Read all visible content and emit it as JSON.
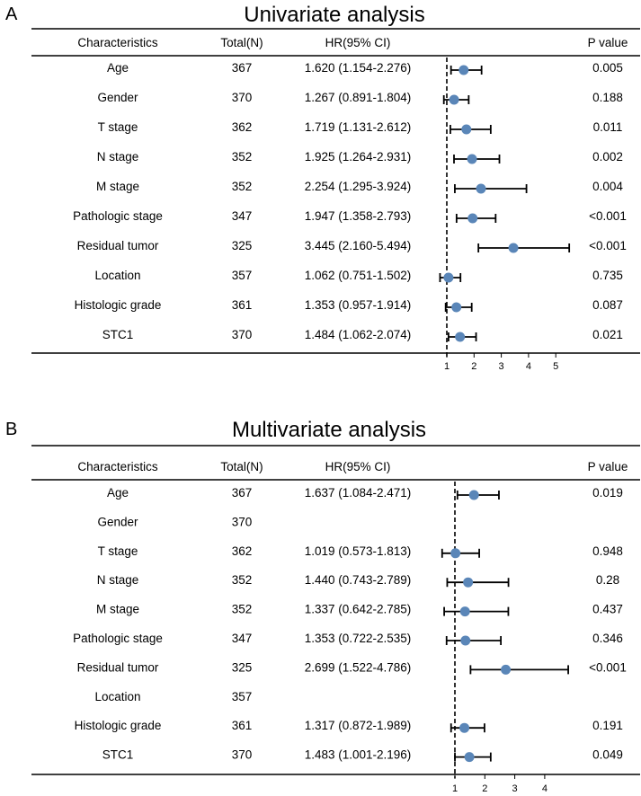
{
  "colors": {
    "point": "#5a86b8",
    "line": "#000000"
  },
  "chart_data": [
    {
      "type": "forest",
      "panel_label": "A",
      "title": "Univariate analysis",
      "headers": {
        "characteristics": "Characteristics",
        "total": "Total(N)",
        "hr": "HR(95% CI)",
        "p": "P value"
      },
      "reference_line": 1,
      "x_ticks": [
        1,
        2,
        3,
        4,
        5
      ],
      "rows": [
        {
          "name": "Age",
          "total": "367",
          "hr_text": "1.620 (1.154-2.276)",
          "hr": 1.62,
          "lo": 1.154,
          "hi": 2.276,
          "p": "0.005"
        },
        {
          "name": "Gender",
          "total": "370",
          "hr_text": "1.267 (0.891-1.804)",
          "hr": 1.267,
          "lo": 0.891,
          "hi": 1.804,
          "p": "0.188"
        },
        {
          "name": "T stage",
          "total": "362",
          "hr_text": "1.719 (1.131-2.612)",
          "hr": 1.719,
          "lo": 1.131,
          "hi": 2.612,
          "p": "0.011"
        },
        {
          "name": "N stage",
          "total": "352",
          "hr_text": "1.925 (1.264-2.931)",
          "hr": 1.925,
          "lo": 1.264,
          "hi": 2.931,
          "p": "0.002"
        },
        {
          "name": "M stage",
          "total": "352",
          "hr_text": "2.254 (1.295-3.924)",
          "hr": 2.254,
          "lo": 1.295,
          "hi": 3.924,
          "p": "0.004"
        },
        {
          "name": "Pathologic stage",
          "total": "347",
          "hr_text": "1.947 (1.358-2.793)",
          "hr": 1.947,
          "lo": 1.358,
          "hi": 2.793,
          "p": "<0.001"
        },
        {
          "name": "Residual tumor",
          "total": "325",
          "hr_text": "3.445 (2.160-5.494)",
          "hr": 3.445,
          "lo": 2.16,
          "hi": 5.494,
          "p": "<0.001"
        },
        {
          "name": "Location",
          "total": "357",
          "hr_text": "1.062 (0.751-1.502)",
          "hr": 1.062,
          "lo": 0.751,
          "hi": 1.502,
          "p": "0.735"
        },
        {
          "name": "Histologic grade",
          "total": "361",
          "hr_text": "1.353 (0.957-1.914)",
          "hr": 1.353,
          "lo": 0.957,
          "hi": 1.914,
          "p": "0.087"
        },
        {
          "name": "STC1",
          "total": "370",
          "hr_text": "1.484 (1.062-2.074)",
          "hr": 1.484,
          "lo": 1.062,
          "hi": 2.074,
          "p": "0.021"
        }
      ]
    },
    {
      "type": "forest",
      "panel_label": "B",
      "title": "Multivariate analysis",
      "headers": {
        "characteristics": "Characteristics",
        "total": "Total(N)",
        "hr": "HR(95% CI)",
        "p": "P value"
      },
      "reference_line": 1,
      "x_ticks": [
        1,
        2,
        3,
        4
      ],
      "rows": [
        {
          "name": "Age",
          "total": "367",
          "hr_text": "1.637 (1.084-2.471)",
          "hr": 1.637,
          "lo": 1.084,
          "hi": 2.471,
          "p": "0.019"
        },
        {
          "name": "Gender",
          "total": "370",
          "hr_text": "",
          "hr": null,
          "lo": null,
          "hi": null,
          "p": ""
        },
        {
          "name": "T stage",
          "total": "362",
          "hr_text": "1.019 (0.573-1.813)",
          "hr": 1.019,
          "lo": 0.573,
          "hi": 1.813,
          "p": "0.948"
        },
        {
          "name": "N stage",
          "total": "352",
          "hr_text": "1.440 (0.743-2.789)",
          "hr": 1.44,
          "lo": 0.743,
          "hi": 2.789,
          "p": "0.28"
        },
        {
          "name": "M stage",
          "total": "352",
          "hr_text": "1.337 (0.642-2.785)",
          "hr": 1.337,
          "lo": 0.642,
          "hi": 2.785,
          "p": "0.437"
        },
        {
          "name": "Pathologic stage",
          "total": "347",
          "hr_text": "1.353 (0.722-2.535)",
          "hr": 1.353,
          "lo": 0.722,
          "hi": 2.535,
          "p": "0.346"
        },
        {
          "name": "Residual tumor",
          "total": "325",
          "hr_text": "2.699 (1.522-4.786)",
          "hr": 2.699,
          "lo": 1.522,
          "hi": 4.786,
          "p": "<0.001"
        },
        {
          "name": "Location",
          "total": "357",
          "hr_text": "",
          "hr": null,
          "lo": null,
          "hi": null,
          "p": ""
        },
        {
          "name": "Histologic grade",
          "total": "361",
          "hr_text": "1.317 (0.872-1.989)",
          "hr": 1.317,
          "lo": 0.872,
          "hi": 1.989,
          "p": "0.191"
        },
        {
          "name": "STC1",
          "total": "370",
          "hr_text": "1.483 (1.001-2.196)",
          "hr": 1.483,
          "lo": 1.001,
          "hi": 2.196,
          "p": "0.049"
        }
      ]
    }
  ]
}
